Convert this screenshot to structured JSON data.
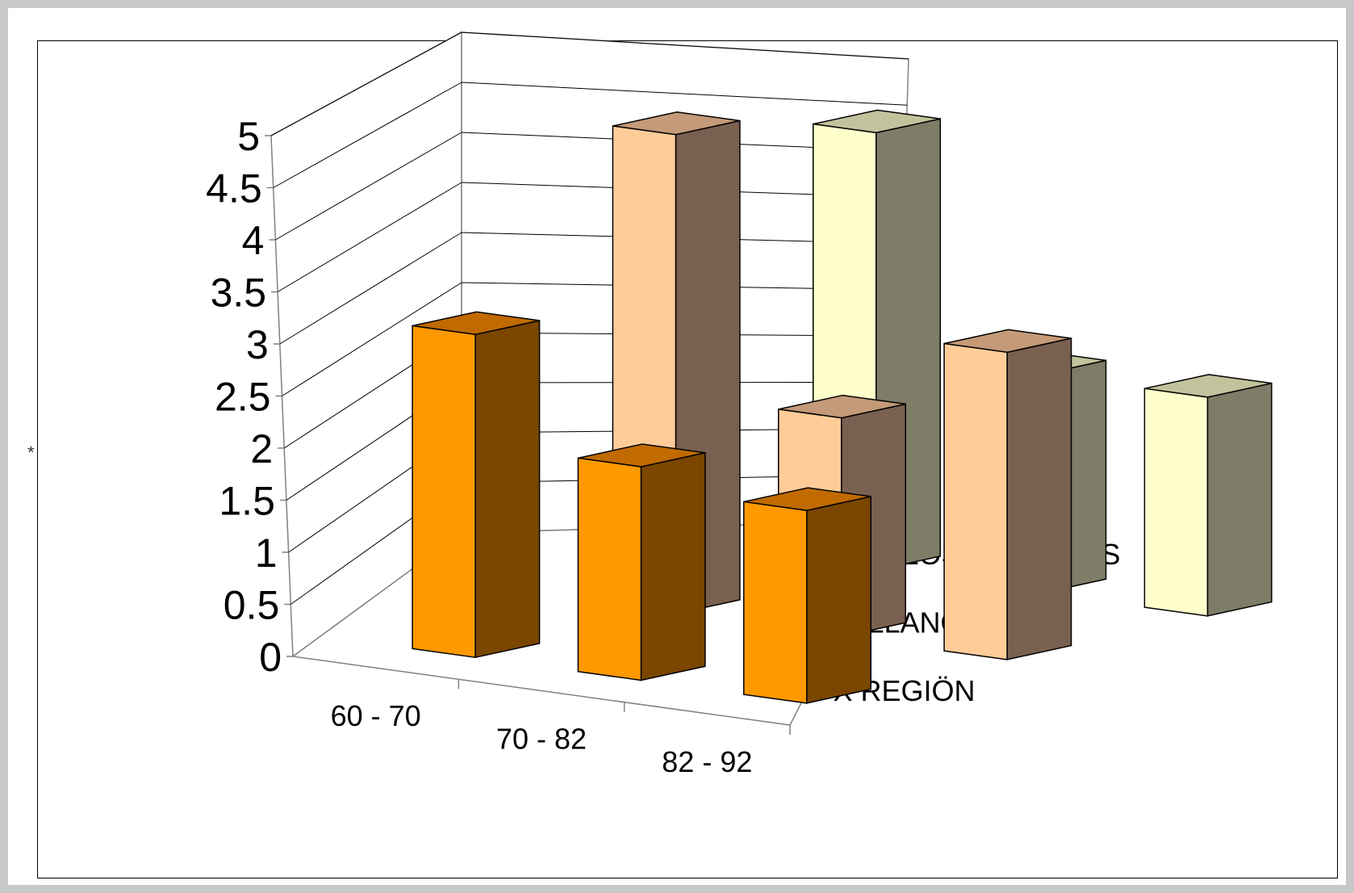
{
  "chart_data": {
    "type": "bar",
    "categories": [
      "60 - 70",
      "70 - 82",
      "82 - 92"
    ],
    "series": [
      {
        "name": "X REGIÖN",
        "values": [
          3.1,
          2.05,
          1.85
        ]
      },
      {
        "name": "LLANQUIHUE",
        "values": [
          4.6,
          2.1,
          2.95
        ]
      },
      {
        "name": "LOS MUERMOS",
        "values": [
          4.2,
          2.1,
          2.1
        ]
      }
    ],
    "yticks": [
      "0",
      "0.5",
      "1",
      "1.5",
      "2",
      "2.5",
      "3",
      "3.5",
      "4",
      "4.5",
      "5"
    ],
    "ylim": [
      0,
      5
    ],
    "grid": true,
    "colors": {
      "X REGIÖN": {
        "front": "#ff9900",
        "top": "#c06a00",
        "side": "#7a4600"
      },
      "LLANQUIHUE": {
        "front": "#ffcc99",
        "top": "#c49a78",
        "side": "#7a6050"
      },
      "LOS MUERMOS": {
        "front": "#ffffcc",
        "top": "#c2c29c",
        "side": "#7d7d68"
      }
    },
    "marker": "*"
  }
}
